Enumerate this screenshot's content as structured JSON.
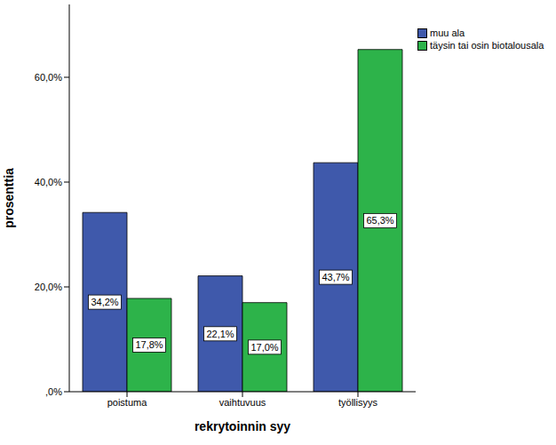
{
  "chart_data": {
    "type": "bar",
    "x_label": "rekrytoinnin syy",
    "y_label": "prosenttia",
    "categories": [
      "poistuma",
      "vaihtuvuus",
      "työllisyys"
    ],
    "series": [
      {
        "name": "muu ala",
        "color": "#3f59ab",
        "values": [
          34.2,
          22.1,
          43.7
        ],
        "value_labels": [
          "34,2%",
          "22,1%",
          "43,7%"
        ]
      },
      {
        "name": "täysin tai osin biotalousala",
        "color": "#2db34a",
        "values": [
          17.8,
          17.0,
          65.3
        ],
        "value_labels": [
          "17,8%",
          "17,0%",
          "65,3%"
        ]
      }
    ],
    "ylim": [
      0,
      73.9
    ],
    "yticks": [
      {
        "value": 0,
        "label": ",0%"
      },
      {
        "value": 20,
        "label": "20,0%"
      },
      {
        "value": 40,
        "label": "40,0%"
      },
      {
        "value": 60,
        "label": "60,0%"
      }
    ],
    "data_labels": true,
    "legend": "upper right"
  }
}
